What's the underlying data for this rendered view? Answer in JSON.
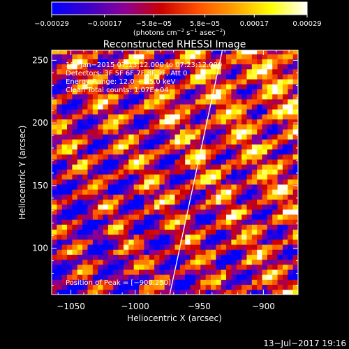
{
  "chart_data": {
    "type": "heatmap",
    "title": "Reconstructed RHESSI Image",
    "xlabel": "Heliocentric X (arcsec)",
    "ylabel": "Heliocentric Y (arcsec)",
    "xlim": [
      -1065,
      -873
    ],
    "ylim": [
      63,
      258
    ],
    "x_ticks": [
      -1050,
      -1000,
      -950,
      -900
    ],
    "x_tick_labels": [
      "−1050",
      "−1000",
      "−950",
      "−900"
    ],
    "y_ticks": [
      100,
      150,
      200,
      250
    ],
    "y_tick_labels": [
      "100",
      "150",
      "200",
      "250"
    ],
    "colorbar": {
      "range": [
        -0.00029,
        0.00029
      ],
      "ticks": [
        -0.00029,
        -0.00017,
        -5.8e-05,
        5.8e-05,
        0.00017,
        0.00029
      ],
      "tick_labels": [
        "−0.00029",
        "−0.00017",
        "−5.8e−05",
        "5.8e−05",
        "0.00017",
        "0.00029"
      ],
      "unit_main": "(photons cm",
      "unit_exp1": "−2",
      "unit_mid": " s",
      "unit_exp2": "−1",
      "unit_tail": " asec",
      "unit_exp3": "−2",
      "unit_close": ")"
    },
    "annotations": [
      "18−Jan−2015 07:13:12.000 to 07:23:12.000",
      "Detectors: 3F 5F 6F 7F 8F 9F, Att 0",
      "Energy Range: 12.0 − 25.0 keV",
      "Clean    Total counts: 1.07E+04"
    ],
    "peak_label": "Position of Peak = [−900,250]",
    "limb_line": [
      [
        -973,
        63
      ],
      [
        -932,
        258
      ]
    ],
    "pattern": {
      "pixel_size_arcsec": 4,
      "stripe_slope": 0.55,
      "stripe_period_arcsec": 21,
      "brightness_gradient": "increases toward upper right"
    }
  },
  "footer_timestamp": "13−Jul−2017 19:16",
  "colors": {
    "background": "#000000",
    "axes": "#ffffff",
    "limb": "#ffffff",
    "colormap": [
      "#0000ff",
      "#3c00c8",
      "#8c0096",
      "#cc0000",
      "#ff5000",
      "#ffa000",
      "#ffff00",
      "#ffffff"
    ]
  }
}
